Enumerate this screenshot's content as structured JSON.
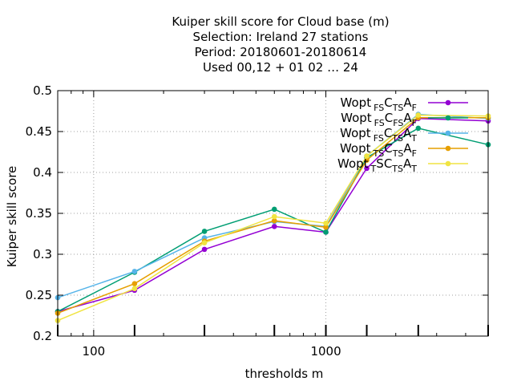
{
  "chart_data": {
    "type": "line",
    "title_lines": [
      "Kuiper skill score  for Cloud base (m)",
      "Selection: Ireland     27 stations",
      "Period: 20180601-20180614",
      "Used  00,12  + 01 02 … 24"
    ],
    "xlabel": "thresholds m",
    "ylabel": "Kuiper skill score",
    "x_scale": "log",
    "xlim": [
      70,
      5000
    ],
    "ylim": [
      0.2,
      0.5
    ],
    "x_ticks": [
      100,
      1000
    ],
    "x_tick_labels": [
      "100",
      "1000"
    ],
    "y_ticks": [
      0.2,
      0.25,
      0.3,
      0.35,
      0.4,
      0.45,
      0.5
    ],
    "y_tick_labels": [
      "0.2",
      "0.25",
      "0.3",
      "0.35",
      "0.4",
      "0.45",
      "0.5"
    ],
    "grid": true,
    "legend_position": "top-right",
    "x": [
      70,
      150,
      300,
      600,
      1000,
      1500,
      2500,
      5000
    ],
    "series": [
      {
        "legend": [
          [
            "Wopt",
            ""
          ],
          [
            "FS",
            "sub"
          ],
          [
            "C",
            ""
          ],
          [
            "TS",
            "sub"
          ],
          [
            "A",
            ""
          ],
          [
            "F",
            "sub"
          ]
        ],
        "color": "#9400d3",
        "marker": "filled-circle",
        "values": [
          0.23,
          0.256,
          0.306,
          0.334,
          0.327,
          0.405,
          0.466,
          0.463
        ]
      },
      {
        "legend": [
          [
            "Wopt",
            ""
          ],
          [
            "FS",
            "sub"
          ],
          [
            "C",
            ""
          ],
          [
            "FS",
            "sub"
          ],
          [
            "A",
            ""
          ],
          [
            "F",
            "sub"
          ]
        ],
        "color": "#009e73",
        "marker": "filled-circle",
        "values": [
          0.23,
          0.278,
          0.328,
          0.355,
          0.327,
          0.418,
          0.454,
          0.434
        ]
      },
      {
        "legend": [
          [
            "Wopt",
            ""
          ],
          [
            "FS",
            "sub"
          ],
          [
            "C",
            ""
          ],
          [
            "TS",
            "sub"
          ],
          [
            "A",
            ""
          ],
          [
            "T",
            "sub"
          ]
        ],
        "color": "#56b4e9",
        "marker": "filled-circle",
        "values": [
          0.247,
          0.279,
          0.32,
          0.34,
          0.334,
          0.42,
          0.471,
          0.466
        ]
      },
      {
        "legend": [
          [
            "Wopt",
            ""
          ],
          [
            "TS",
            "sub"
          ],
          [
            "C",
            ""
          ],
          [
            "TS",
            "sub"
          ],
          [
            "A",
            ""
          ],
          [
            "F",
            "sub"
          ]
        ],
        "color": "#e69f00",
        "marker": "filled-circle",
        "values": [
          0.228,
          0.264,
          0.316,
          0.341,
          0.333,
          0.415,
          0.467,
          0.467
        ]
      },
      {
        "legend": [
          [
            "Wopt",
            ""
          ],
          [
            "T",
            "sub"
          ],
          [
            "S",
            ""
          ],
          [
            "C",
            ""
          ],
          [
            "TS",
            "sub"
          ],
          [
            "A",
            ""
          ],
          [
            "T",
            "sub"
          ]
        ],
        "color": "#f0e442",
        "marker": "filled-circle",
        "values": [
          0.219,
          0.258,
          0.314,
          0.346,
          0.338,
          0.42,
          0.47,
          0.469
        ]
      }
    ]
  }
}
